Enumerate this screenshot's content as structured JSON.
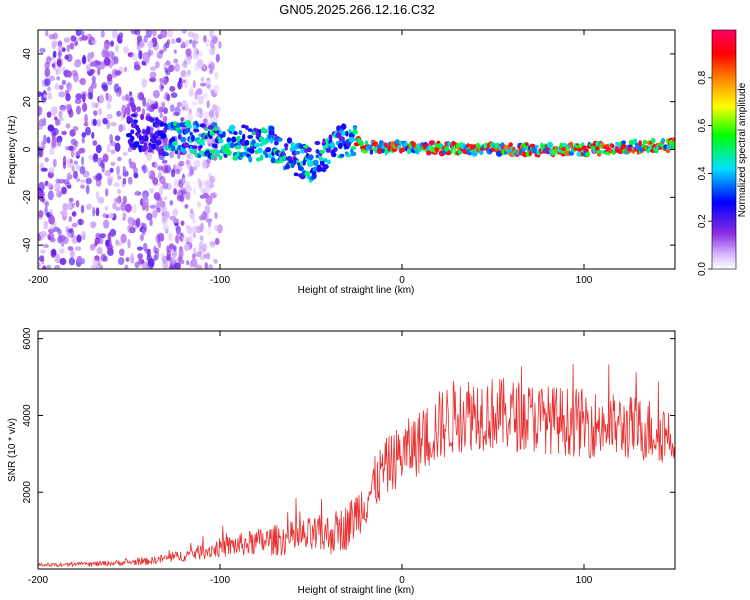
{
  "title": "GN05.2025.266.12.16.C32",
  "chart_data": [
    {
      "type": "heatmap",
      "panel": "spectrogram",
      "xlabel": "Height of straight line (km)",
      "ylabel": "Frequency (Hz)",
      "xlim": [
        -200,
        150
      ],
      "ylim": [
        -50,
        50
      ],
      "xticks": [
        -200,
        -100,
        0,
        100
      ],
      "xtick_labels": [
        "-200",
        "-100",
        "0",
        "100"
      ],
      "yticks": [
        -40,
        -20,
        0,
        20,
        40
      ],
      "ytick_labels": [
        "-40",
        "-20",
        "0",
        "20",
        "40"
      ],
      "ridge": {
        "description": "dominant frequency ridge",
        "x": [
          -150,
          -130,
          -110,
          -90,
          -70,
          -60,
          -50,
          -40,
          -30,
          -20,
          0,
          50,
          100,
          150
        ],
        "frequency": [
          8,
          5,
          4,
          3,
          2,
          -3,
          -6,
          0,
          4,
          1,
          1,
          0,
          0,
          2
        ]
      },
      "colorbar": {
        "label": "Normalized spectral amplitude",
        "range": [
          0,
          1
        ],
        "ticks": [
          0.0,
          0.2,
          0.4,
          0.6,
          0.8
        ],
        "tick_labels": [
          "0.0",
          "0.2",
          "0.4",
          "0.6",
          "0.8"
        ],
        "colormap": [
          "#ffffff",
          "#8a2be2",
          "#0000ff",
          "#00e0ff",
          "#00ff00",
          "#ffff00",
          "#ff8000",
          "#ff0000",
          "#ff0066"
        ]
      }
    },
    {
      "type": "line",
      "panel": "snr",
      "xlabel": "Height of straight line (km)",
      "ylabel": "SNR (10 * v/v)",
      "xlim": [
        -200,
        150
      ],
      "ylim": [
        0,
        6200
      ],
      "xticks": [
        -200,
        -100,
        0,
        100
      ],
      "xtick_labels": [
        "-200",
        "-100",
        "0",
        "100"
      ],
      "yticks": [
        2000,
        4000,
        6000
      ],
      "ytick_labels": [
        "2000",
        "4000",
        "6000"
      ],
      "series": [
        {
          "name": "SNR",
          "color": "#e83030",
          "x": [
            -200,
            -180,
            -160,
            -140,
            -120,
            -100,
            -80,
            -60,
            -40,
            -30,
            -20,
            -10,
            0,
            10,
            20,
            30,
            40,
            60,
            80,
            100,
            120,
            140,
            150
          ],
          "values": [
            100,
            110,
            150,
            200,
            350,
            550,
            700,
            800,
            900,
            1100,
            1800,
            2600,
            3000,
            3300,
            3700,
            4000,
            4100,
            4000,
            3900,
            3800,
            3700,
            3600,
            3500
          ],
          "noise": [
            60,
            60,
            70,
            90,
            150,
            250,
            350,
            450,
            550,
            600,
            700,
            750,
            800,
            850,
            950,
            1000,
            1000,
            950,
            900,
            900,
            850,
            850,
            800
          ]
        }
      ]
    }
  ]
}
